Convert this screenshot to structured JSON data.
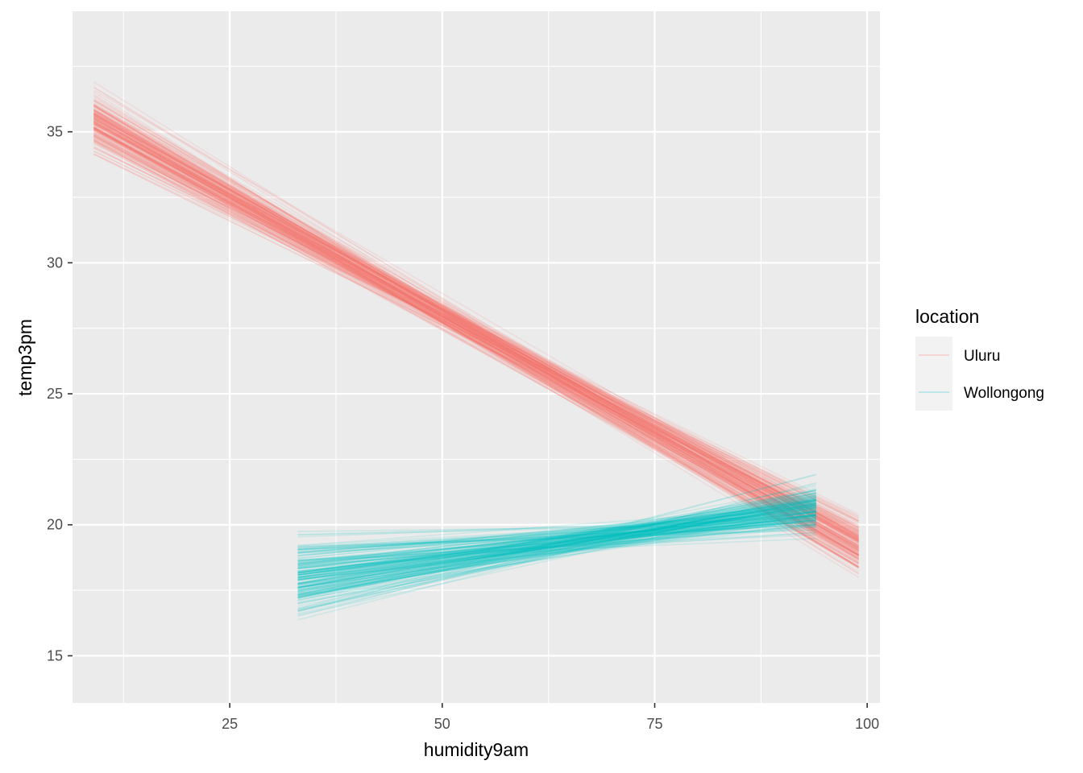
{
  "chart_data": {
    "type": "line",
    "xlabel": "humidity9am",
    "ylabel": "temp3pm",
    "xlim": [
      6.5,
      101.5
    ],
    "ylim": [
      13.2,
      39.6
    ],
    "x_ticks": [
      25,
      50,
      75,
      100
    ],
    "x_tick_labels": [
      "25",
      "50",
      "75",
      "100"
    ],
    "y_ticks": [
      15,
      20,
      25,
      30,
      35
    ],
    "y_tick_labels": [
      "15",
      "20",
      "25",
      "30",
      "35"
    ],
    "grid": true,
    "legend": {
      "title": "location",
      "position": "right"
    },
    "series": [
      {
        "name": "Uluru",
        "color": "#F8766D",
        "line_count": 200,
        "x_range": [
          9,
          99
        ],
        "typical_intercept_at_x9": 35.8,
        "typical_slope": -0.18,
        "values": [
          {
            "x": 9,
            "y_min": 33.9,
            "y_max": 38.3
          },
          {
            "x": 99,
            "y_min": 15.5,
            "y_max": 21.3
          }
        ]
      },
      {
        "name": "Wollongong",
        "color": "#00BFC4",
        "line_count": 200,
        "x_range": [
          33,
          94
        ],
        "typical_intercept_at_x33": 17.6,
        "typical_slope": 0.045,
        "values": [
          {
            "x": 33,
            "y_min": 14.3,
            "y_max": 20.8
          },
          {
            "x": 94,
            "y_min": 18.2,
            "y_max": 23.1
          }
        ]
      }
    ]
  }
}
